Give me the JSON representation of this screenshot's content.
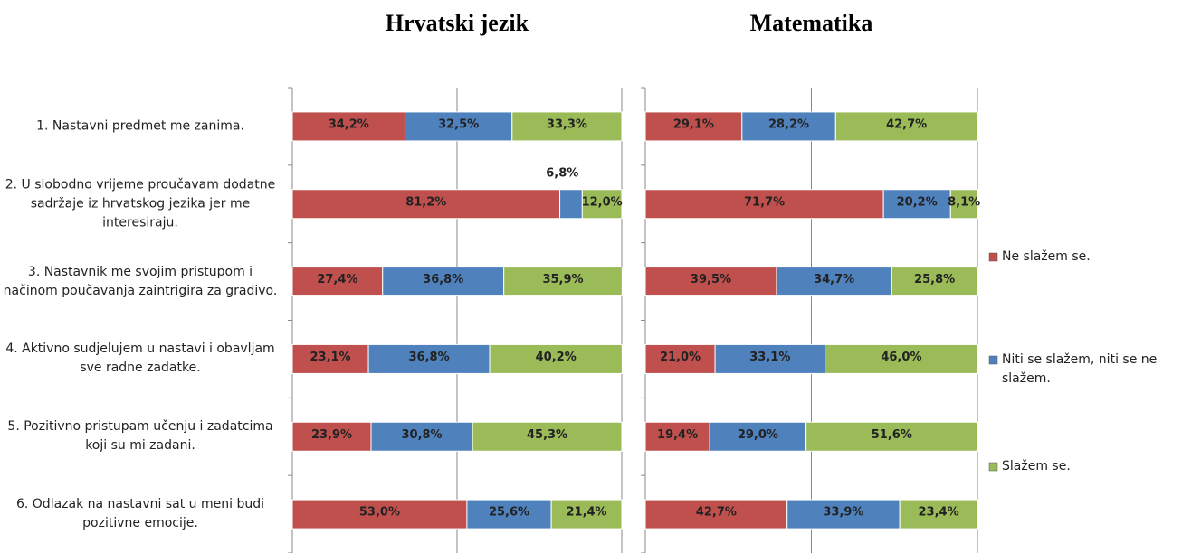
{
  "chart_data": [
    {
      "type": "stacked_barh",
      "title": "Hrvatski jezik",
      "categories": [
        "1. Nastavni predmet me zanima.",
        "2. U slobodno vrijeme proučavam dodatne sadržaje iz hrvatskog jezika jer me interesiraju.",
        "3. Nastavnik me svojim pristupom i načinom poučavanja zaintrigira za gradivo.",
        "4. Aktivno sudjelujem u nastavi i obavljam sve radne zadatke.",
        "5. Pozitivno pristupam učenju i zadatcima koji su mi zadani.",
        "6. Odlazak na nastavni sat u meni budi pozitivne emocije."
      ],
      "xlim": [
        0,
        100
      ],
      "xticks": [
        0,
        50,
        100
      ],
      "grid": true,
      "legend": "right",
      "series": [
        {
          "name": "Ne slažem se.",
          "color": "#c0504d",
          "values": [
            34.2,
            81.2,
            27.4,
            23.1,
            23.9,
            53.0
          ],
          "value_labels": [
            "34,2%",
            "81,2%",
            "27,4%",
            "23,1%",
            "23,9%",
            "53,0%"
          ]
        },
        {
          "name": "Niti se slažem, niti se ne slažem.",
          "color": "#4f81bd",
          "values": [
            32.5,
            6.8,
            36.8,
            36.8,
            30.8,
            25.6
          ],
          "value_labels": [
            "32,5%",
            "6,8%",
            "36,8%",
            "36,8%",
            "30,8%",
            "25,6%"
          ]
        },
        {
          "name": "Slažem se.",
          "color": "#9bbb59",
          "values": [
            33.3,
            12.0,
            35.9,
            40.2,
            45.3,
            21.4
          ],
          "value_labels": [
            "33,3%",
            "12,0%",
            "35,9%",
            "40,2%",
            "45,3%",
            "21,4%"
          ]
        }
      ]
    },
    {
      "type": "stacked_barh",
      "title": "Matematika",
      "categories": [
        null,
        null,
        null,
        null,
        null,
        null
      ],
      "xlim": [
        0,
        100
      ],
      "xticks": [
        0,
        50,
        100
      ],
      "grid": true,
      "series": [
        {
          "name": "Ne slažem se.",
          "color": "#c0504d",
          "values": [
            29.1,
            71.7,
            39.5,
            21.0,
            19.4,
            42.7
          ],
          "value_labels": [
            "29,1%",
            "71,7%",
            "39,5%",
            "21,0%",
            "19,4%",
            "42,7%"
          ]
        },
        {
          "name": "Niti se slažem, niti se ne slažem.",
          "color": "#4f81bd",
          "values": [
            28.2,
            20.2,
            34.7,
            33.1,
            29.0,
            33.9
          ],
          "value_labels": [
            "28,2%",
            "20,2%",
            "34,7%",
            "33,1%",
            "29,0%",
            "33,9%"
          ]
        },
        {
          "name": "Slažem se.",
          "color": "#9bbb59",
          "values": [
            42.7,
            8.1,
            25.8,
            46.0,
            51.6,
            23.4
          ],
          "value_labels": [
            "42,7%",
            "8,1%",
            "25,8%",
            "46,0%",
            "51,6%",
            "23,4%"
          ]
        }
      ]
    }
  ]
}
